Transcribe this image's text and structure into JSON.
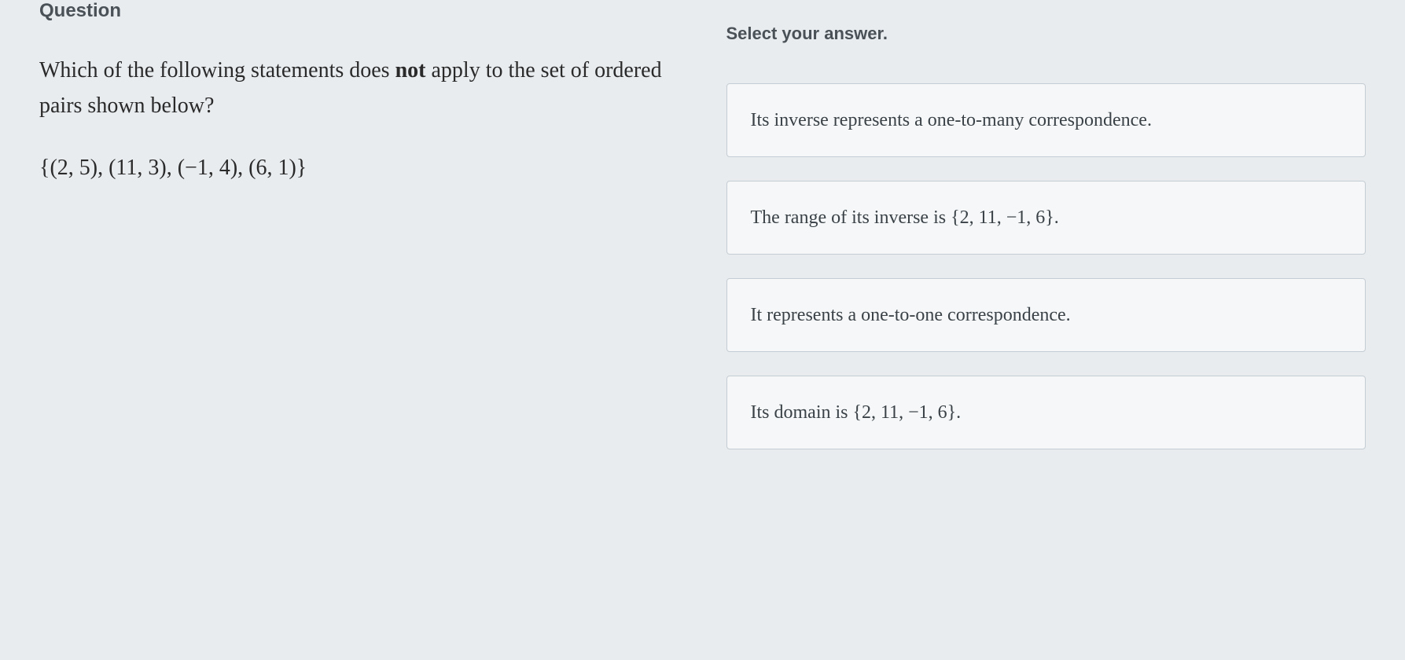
{
  "left": {
    "header": "Question",
    "text_part1": "Which of the following statements does ",
    "text_bold": "not",
    "text_part2": " apply to the set of ordered pairs shown below?",
    "math": "{(2, 5), (11, 3), (−1, 4), (6, 1)}"
  },
  "right": {
    "prompt": "Select your answer.",
    "options": [
      "Its inverse represents a one-to-many correspondence.",
      "The range of its inverse is {2, 11, −1, 6}.",
      "It represents a one-to-one correspondence.",
      "Its domain is {2, 11, −1, 6}."
    ]
  },
  "colors": {
    "background": "#e8ecef",
    "option_bg": "#f5f7f8",
    "option_border": "#c5cdd4",
    "header_text": "#4a5258",
    "body_text": "#2a2a2a",
    "option_text": "#3a4248"
  }
}
